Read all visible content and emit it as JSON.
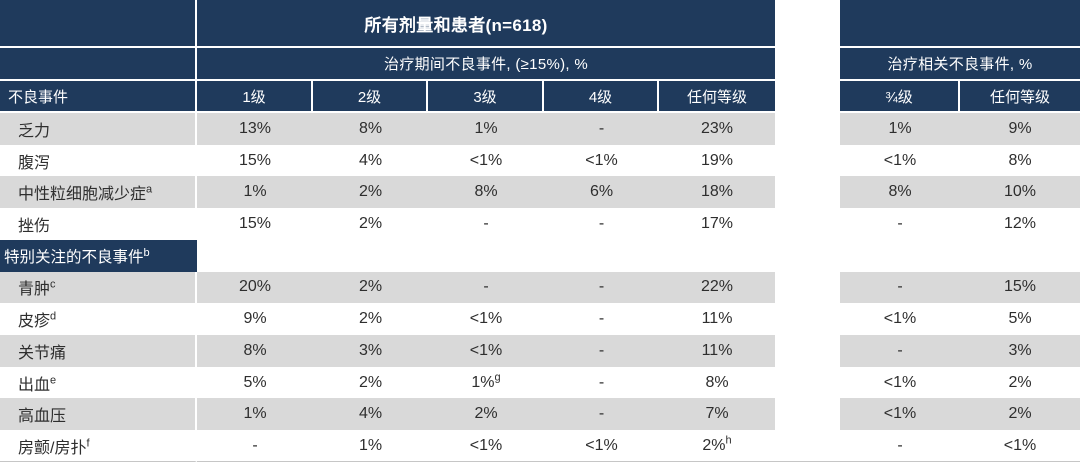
{
  "chart_data": {
    "type": "table",
    "title": "所有剂量和患者(n=618)",
    "col_group_left": "治疗期间不良事件, (≥15%), %",
    "col_group_right": "治疗相关不良事件, %",
    "row_header": "不良事件",
    "grade_columns": [
      "1级",
      "2级",
      "3级",
      "4级",
      "任何等级"
    ],
    "related_columns": [
      "¾级",
      "任何等级"
    ],
    "rows": [
      {
        "label": "乏力",
        "cells": [
          "13%",
          "8%",
          "1%",
          "-",
          "23%"
        ],
        "related": [
          "1%",
          "9%"
        ]
      },
      {
        "label": "腹泻",
        "cells": [
          "15%",
          "4%",
          "<1%",
          "<1%",
          "19%"
        ],
        "related": [
          "<1%",
          "8%"
        ]
      },
      {
        "label": "中性粒细胞减少症",
        "sup": "a",
        "cells": [
          "1%",
          "2%",
          "8%",
          "6%",
          "18%"
        ],
        "related": [
          "8%",
          "10%"
        ]
      },
      {
        "label": "挫伤",
        "cells": [
          "15%",
          "2%",
          "-",
          "-",
          "17%"
        ],
        "related": [
          "-",
          "12%"
        ]
      },
      {
        "label": "特别关注的不良事件",
        "sup": "b",
        "section": true
      },
      {
        "label": "青肿",
        "sup": "c",
        "cells": [
          "20%",
          "2%",
          "-",
          "-",
          "22%"
        ],
        "related": [
          "-",
          "15%"
        ]
      },
      {
        "label": "皮疹",
        "sup": "d",
        "cells": [
          "9%",
          "2%",
          "<1%",
          "-",
          "11%"
        ],
        "related": [
          "<1%",
          "5%"
        ]
      },
      {
        "label": "关节痛",
        "cells": [
          "8%",
          "3%",
          "<1%",
          "-",
          "11%"
        ],
        "related": [
          "-",
          "3%"
        ]
      },
      {
        "label": "出血",
        "sup": "e",
        "cells": [
          "5%",
          "2%",
          {
            "v": "1%",
            "sup": "g"
          },
          "-",
          "8%"
        ],
        "related": [
          "<1%",
          "2%"
        ]
      },
      {
        "label": "高血压",
        "cells": [
          "1%",
          "4%",
          "2%",
          "-",
          "7%"
        ],
        "related": [
          "<1%",
          "2%"
        ]
      },
      {
        "label": "房颤/房扑",
        "sup": "f",
        "cells": [
          "-",
          "1%",
          "<1%",
          "<1%",
          {
            "v": "2%",
            "sup": "h"
          }
        ],
        "related": [
          "-",
          "<1%"
        ]
      }
    ]
  },
  "colors": {
    "header_navy": "#1F3A5C",
    "row_shade_gray": "#D9D9D9",
    "header_text": "#FFFFFF",
    "body_text": "#2E2E2E"
  }
}
